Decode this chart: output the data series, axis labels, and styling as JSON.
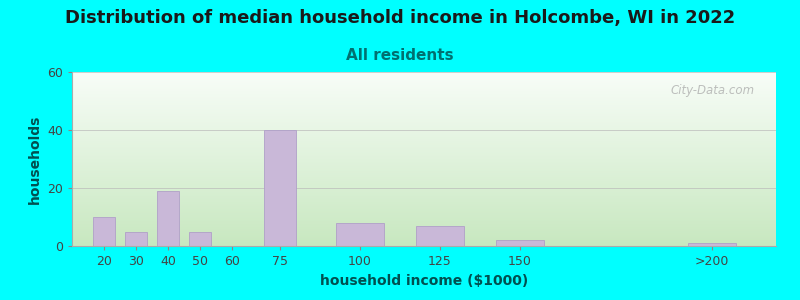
{
  "title": "Distribution of median household income in Holcombe, WI in 2022",
  "subtitle": "All residents",
  "xlabel": "household income ($1000)",
  "ylabel": "households",
  "bar_color": "#c9b8d8",
  "bar_edge_color": "#b0a0c8",
  "background_color": "#00ffff",
  "plot_bg_top": "#f8fdf8",
  "plot_bg_bottom": "#c8e8c0",
  "ylim": [
    0,
    60
  ],
  "yticks": [
    0,
    20,
    40,
    60
  ],
  "categories": [
    "20",
    "30",
    "40",
    "50",
    "60",
    "75",
    "100",
    "125",
    "150",
    ">200"
  ],
  "x_positions": [
    20,
    30,
    40,
    50,
    60,
    75,
    100,
    125,
    150,
    210
  ],
  "bar_widths": [
    8,
    8,
    8,
    8,
    8,
    12,
    18,
    18,
    18,
    18
  ],
  "values": [
    10,
    5,
    19,
    5,
    0,
    40,
    8,
    7,
    2,
    1
  ],
  "title_fontsize": 13,
  "subtitle_fontsize": 11,
  "axis_label_fontsize": 10,
  "tick_fontsize": 9,
  "watermark_text": "City-Data.com",
  "title_color": "#1a1a1a",
  "subtitle_color": "#007070",
  "axis_label_color": "#005050",
  "tick_color": "#444444",
  "grid_color": "#bbbbbb",
  "xlim": [
    10,
    230
  ],
  "xtick_positions": [
    20,
    30,
    40,
    50,
    60,
    75,
    100,
    125,
    150,
    210
  ],
  "xtick_labels": [
    "20",
    "30",
    "40",
    "50",
    "60",
    "75",
    "100",
    "125",
    "150",
    ">200"
  ]
}
